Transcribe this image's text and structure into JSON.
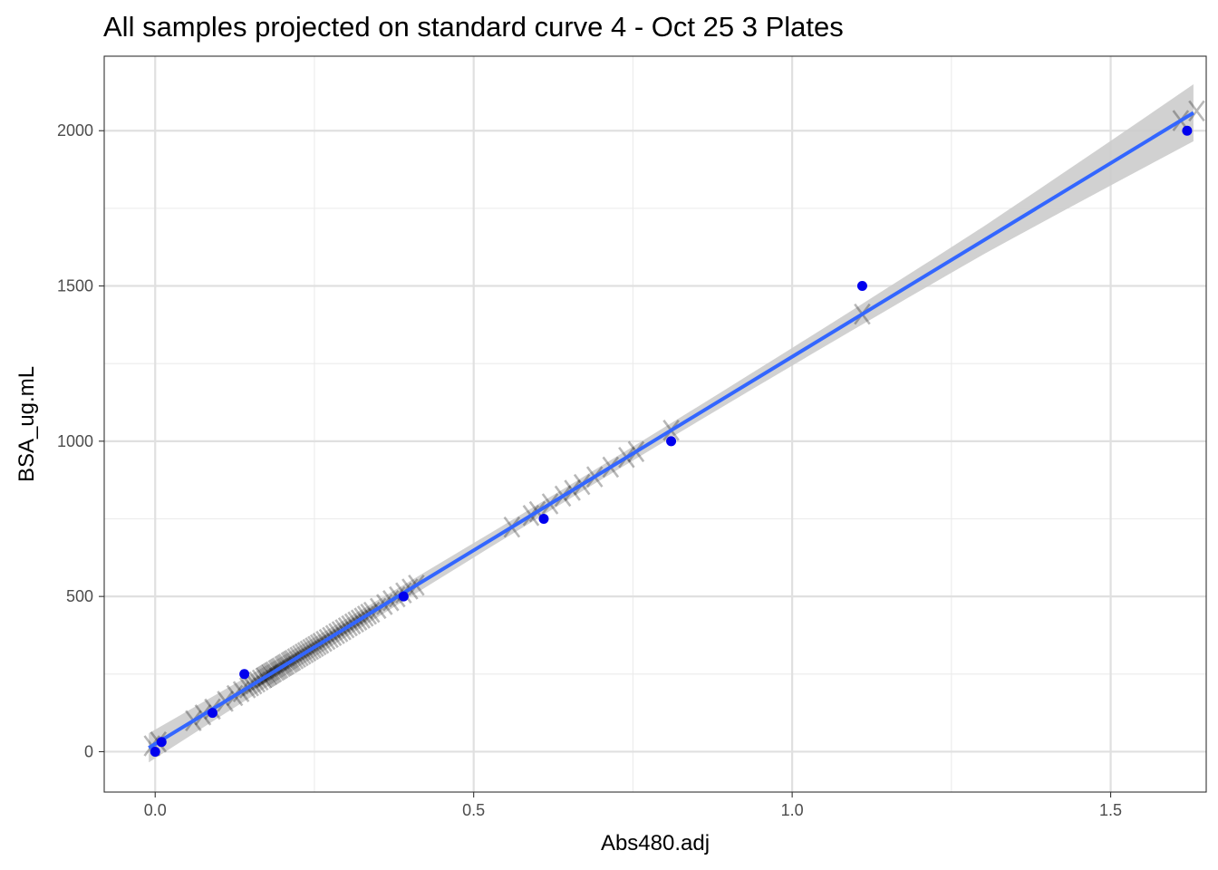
{
  "chart_data": {
    "type": "scatter",
    "title": "All samples projected on standard curve 4 - Oct 25 3 Plates",
    "xlabel": "Abs480.adj",
    "ylabel": "BSA_ug.mL",
    "xlim": [
      -0.08,
      1.65
    ],
    "ylim": [
      -130,
      2240
    ],
    "x_ticks": [
      0.0,
      0.5,
      1.0,
      1.5
    ],
    "x_tick_labels": [
      "0.0",
      "0.5",
      "1.0",
      "1.5"
    ],
    "y_ticks": [
      0,
      500,
      1000,
      1500,
      2000
    ],
    "y_tick_labels": [
      "0",
      "500",
      "1000",
      "1500",
      "2000"
    ],
    "x_minor_ticks": [
      0.25,
      0.75,
      1.25
    ],
    "y_minor_ticks": [
      250,
      750,
      1250,
      1750
    ],
    "grid": true,
    "legend": "none",
    "fit_line": {
      "type": "linear",
      "intercept": 25,
      "slope": 1247,
      "x_range": [
        -0.01,
        1.63
      ],
      "color": "#3366ff",
      "confidence_band": true,
      "band_color": "#cccccc"
    },
    "standards": {
      "name": "standards",
      "color": "#0000ee",
      "marker": "point",
      "points": [
        {
          "x": 0.0,
          "y": 0
        },
        {
          "x": 0.01,
          "y": 31.25
        },
        {
          "x": 0.09,
          "y": 125
        },
        {
          "x": 0.14,
          "y": 250
        },
        {
          "x": 0.39,
          "y": 500
        },
        {
          "x": 0.61,
          "y": 750
        },
        {
          "x": 0.81,
          "y": 1000
        },
        {
          "x": 1.11,
          "y": 1500
        },
        {
          "x": 1.62,
          "y": 2000
        }
      ]
    },
    "samples": {
      "name": "samples",
      "color": "#000000",
      "marker": "X",
      "projected_on": "fit_line",
      "x": [
        -0.005,
        0.005,
        0.06,
        0.075,
        0.09,
        0.11,
        0.125,
        0.135,
        0.145,
        0.15,
        0.155,
        0.16,
        0.165,
        0.17,
        0.172,
        0.175,
        0.178,
        0.18,
        0.183,
        0.186,
        0.19,
        0.193,
        0.196,
        0.2,
        0.203,
        0.206,
        0.21,
        0.213,
        0.216,
        0.22,
        0.224,
        0.228,
        0.232,
        0.236,
        0.24,
        0.244,
        0.248,
        0.252,
        0.256,
        0.26,
        0.265,
        0.27,
        0.275,
        0.28,
        0.285,
        0.29,
        0.295,
        0.3,
        0.305,
        0.31,
        0.315,
        0.32,
        0.325,
        0.33,
        0.335,
        0.34,
        0.35,
        0.36,
        0.37,
        0.38,
        0.39,
        0.4,
        0.41,
        0.56,
        0.59,
        0.6,
        0.62,
        0.64,
        0.655,
        0.67,
        0.69,
        0.715,
        0.74,
        0.755,
        0.81,
        1.11,
        1.61,
        1.635
      ]
    }
  }
}
